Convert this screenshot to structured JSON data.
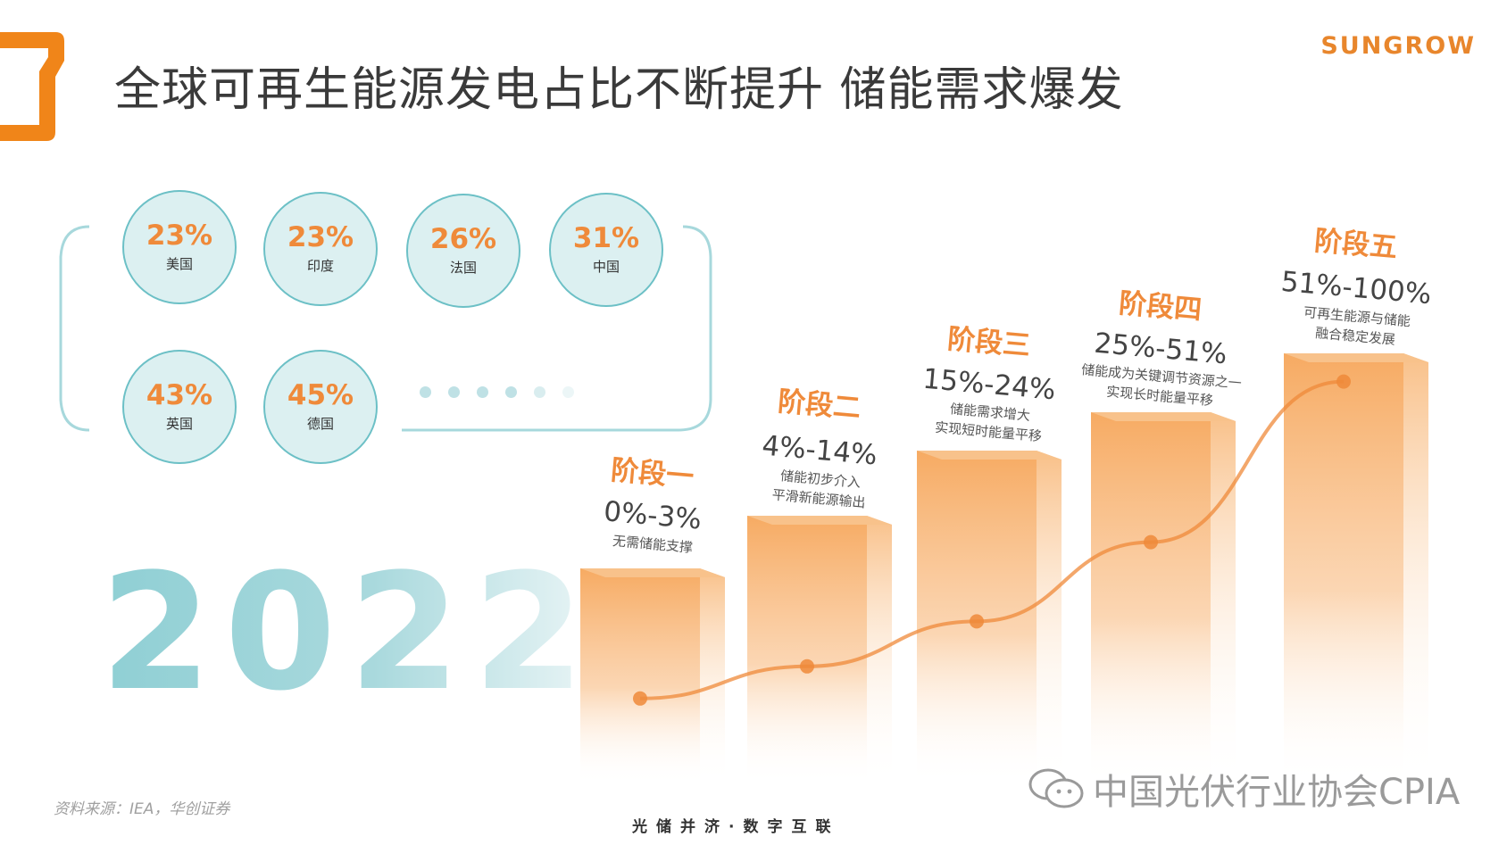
{
  "header": {
    "title": "全球可再生能源发电占比不断提升 储能需求爆发",
    "brand": "SUNGROW"
  },
  "countries": [
    {
      "pct": "23%",
      "name": "美国"
    },
    {
      "pct": "23%",
      "name": "印度"
    },
    {
      "pct": "26%",
      "name": "法国"
    },
    {
      "pct": "31%",
      "name": "中国"
    },
    {
      "pct": "43%",
      "name": "英国"
    },
    {
      "pct": "45%",
      "name": "德国"
    }
  ],
  "year": "2022",
  "chart_data": {
    "type": "bar",
    "categories": [
      "阶段一",
      "阶段二",
      "阶段三",
      "阶段四",
      "阶段五"
    ],
    "ranges": [
      "0%-3%",
      "4%-14%",
      "15%-24%",
      "25%-51%",
      "51%-100%"
    ],
    "notes": [
      [
        "无需储能支撑"
      ],
      [
        "储能初步介入",
        "平滑新能源输出"
      ],
      [
        "储能需求增大",
        "实现短时能量平移"
      ],
      [
        "储能成为关键调节资源之一",
        "实现长时能量平移"
      ],
      [
        "可再生能源与储能",
        "融合稳定发展"
      ]
    ],
    "series": [
      {
        "values": [
          1.5,
          9,
          19.5,
          38,
          75.5
        ]
      }
    ],
    "colors": {
      "bar": "#f6a65a",
      "line": "#ef8a3a"
    }
  },
  "footer": {
    "source": "资料来源：IEA，华创证券",
    "slogan": "光储并济·数字互联",
    "watermark": "中国光伏行业协会CPIA"
  }
}
